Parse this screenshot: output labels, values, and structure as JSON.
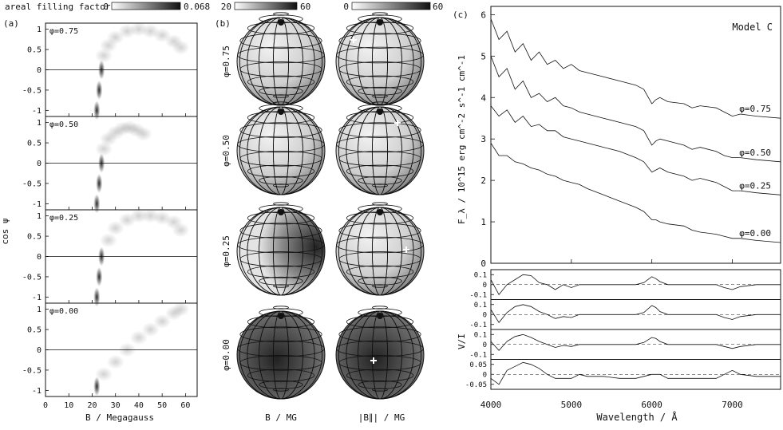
{
  "panels": {
    "a": {
      "label": "(a)",
      "colorbar": {
        "label": "areal filling factor:",
        "min": "0",
        "max": "0.068"
      },
      "ylabel": "cos ψ",
      "xlabel": "B / Megagauss",
      "xlim": [
        0,
        65
      ],
      "ylim": [
        -1.15,
        1.15
      ],
      "xticks": [
        "0",
        "10",
        "20",
        "30",
        "40",
        "50",
        "60"
      ],
      "yticks": [
        "1",
        "0.5",
        "0",
        "-0.5",
        "-1"
      ],
      "phases": [
        "φ=0.75",
        "φ=0.50",
        "φ=0.25",
        "φ=0.00"
      ]
    },
    "b": {
      "label": "(b)",
      "colorbar_left": {
        "min": "20",
        "max": "60"
      },
      "colorbar_right": {
        "min": "0",
        "max": "60"
      },
      "row_labels": [
        "φ=0.75",
        "φ=0.50",
        "φ=0.25",
        "φ=0.00"
      ],
      "col_labels": [
        "B / MG",
        "|B∥| / MG"
      ]
    },
    "c": {
      "label": "(c)",
      "model": "Model C",
      "ylabel": "F_λ / 10^15 erg cm^-2 s^-1 cm^-1",
      "vi_label": "V/I",
      "xlabel": "Wavelength / Å",
      "xticks": [
        "4000",
        "5000",
        "6000",
        "7000"
      ],
      "yticks": [
        "0",
        "1",
        "2",
        "3",
        "4",
        "5",
        "6"
      ],
      "vi_ticks": [
        "0.1",
        "0",
        "-0.1"
      ],
      "vi_ticks_bottom": [
        "0.05",
        "0",
        "-0.05"
      ],
      "curve_labels": [
        "φ=0.75",
        "φ=0.50",
        "φ=0.25",
        "φ=0.00"
      ]
    }
  },
  "colors": {
    "ink": "#111111",
    "paper": "#ffffff"
  },
  "chart_data": [
    {
      "type": "heatmap",
      "title": "",
      "xlabel": "B / Megagauss",
      "ylabel": "cos ψ",
      "xlim": [
        0,
        65
      ],
      "ylim": [
        -1.15,
        1.15
      ],
      "series": [
        {
          "name": "φ=0.75",
          "x": [
            22,
            23,
            24,
            25,
            27,
            30,
            35,
            40,
            45,
            50,
            55,
            58
          ],
          "y": [
            -1.0,
            -0.5,
            0.0,
            0.35,
            0.6,
            0.8,
            0.95,
            1.0,
            0.95,
            0.85,
            0.7,
            0.55
          ]
        },
        {
          "name": "φ=0.50",
          "x": [
            22,
            23,
            24,
            25,
            27,
            30,
            33,
            36,
            39,
            42
          ],
          "y": [
            -1.0,
            -0.5,
            0.0,
            0.35,
            0.6,
            0.75,
            0.85,
            0.88,
            0.82,
            0.72
          ]
        },
        {
          "name": "φ=0.25",
          "x": [
            22,
            23,
            24,
            27,
            30,
            35,
            40,
            45,
            50,
            55,
            58
          ],
          "y": [
            -1.0,
            -0.5,
            0.0,
            0.4,
            0.7,
            0.9,
            1.0,
            1.0,
            0.95,
            0.85,
            0.65
          ]
        },
        {
          "name": "φ=0.00",
          "x": [
            22,
            25,
            30,
            35,
            40,
            45,
            50,
            55,
            58
          ],
          "y": [
            -0.9,
            -0.6,
            -0.3,
            0.0,
            0.3,
            0.5,
            0.7,
            0.9,
            1.0
          ]
        }
      ]
    },
    {
      "type": "line",
      "title": "Model C",
      "xlabel": "Wavelength / Å",
      "ylabel": "F_λ / 10^15 erg cm^-2 s^-1 cm^-1",
      "xlim": [
        4000,
        7600
      ],
      "ylim": [
        0,
        6.2
      ],
      "x": [
        4000,
        4100,
        4200,
        4300,
        4400,
        4500,
        4600,
        4700,
        4800,
        4900,
        5000,
        5100,
        5200,
        5400,
        5600,
        5800,
        5900,
        6000,
        6050,
        6100,
        6200,
        6400,
        6500,
        6600,
        6800,
        6900,
        7000,
        7100,
        7300,
        7600
      ],
      "series": [
        {
          "name": "φ=0.75",
          "values": [
            5.9,
            5.4,
            5.6,
            5.1,
            5.3,
            4.9,
            5.1,
            4.8,
            4.9,
            4.7,
            4.8,
            4.65,
            4.6,
            4.5,
            4.4,
            4.3,
            4.2,
            3.85,
            3.95,
            4.0,
            3.9,
            3.85,
            3.75,
            3.8,
            3.75,
            3.65,
            3.55,
            3.6,
            3.55,
            3.5
          ]
        },
        {
          "name": "φ=0.50",
          "values": [
            5.0,
            4.5,
            4.7,
            4.2,
            4.4,
            4.0,
            4.1,
            3.9,
            4.0,
            3.8,
            3.75,
            3.65,
            3.6,
            3.5,
            3.4,
            3.3,
            3.2,
            2.85,
            2.95,
            3.0,
            2.95,
            2.85,
            2.75,
            2.8,
            2.7,
            2.6,
            2.55,
            2.55,
            2.5,
            2.45
          ]
        },
        {
          "name": "φ=0.25",
          "values": [
            3.8,
            3.55,
            3.7,
            3.4,
            3.55,
            3.3,
            3.35,
            3.2,
            3.2,
            3.05,
            3.0,
            2.95,
            2.9,
            2.8,
            2.7,
            2.55,
            2.45,
            2.2,
            2.25,
            2.3,
            2.2,
            2.1,
            2.0,
            2.05,
            1.95,
            1.85,
            1.75,
            1.75,
            1.7,
            1.65
          ]
        },
        {
          "name": "φ=0.00",
          "values": [
            2.9,
            2.6,
            2.6,
            2.45,
            2.4,
            2.3,
            2.25,
            2.15,
            2.1,
            2.0,
            1.95,
            1.9,
            1.8,
            1.65,
            1.5,
            1.35,
            1.25,
            1.05,
            1.05,
            1.0,
            0.95,
            0.9,
            0.8,
            0.75,
            0.7,
            0.65,
            0.6,
            0.6,
            0.55,
            0.5
          ]
        }
      ]
    },
    {
      "type": "line",
      "title": "",
      "xlabel": "Wavelength / Å",
      "ylabel": "V/I",
      "xlim": [
        4000,
        7600
      ],
      "ylim": [
        -0.15,
        0.15
      ],
      "x": [
        4000,
        4100,
        4200,
        4300,
        4400,
        4500,
        4600,
        4700,
        4800,
        4900,
        5000,
        5100,
        5200,
        5400,
        5600,
        5800,
        5900,
        6000,
        6050,
        6100,
        6200,
        6400,
        6500,
        6600,
        6800,
        6900,
        7000,
        7100,
        7300,
        7600
      ],
      "series": [
        {
          "name": "φ=0.75",
          "values": [
            0.05,
            -0.1,
            0.0,
            0.05,
            0.1,
            0.09,
            0.02,
            0.0,
            -0.05,
            0.0,
            -0.03,
            0.0,
            0.0,
            0.0,
            0.0,
            0.0,
            0.02,
            0.08,
            0.06,
            0.03,
            0.0,
            0.0,
            0.0,
            0.0,
            0.0,
            -0.03,
            -0.05,
            -0.02,
            0.0,
            0.0
          ]
        },
        {
          "name": "φ=0.50",
          "values": [
            0.05,
            -0.08,
            0.02,
            0.08,
            0.1,
            0.08,
            0.03,
            0.0,
            -0.04,
            -0.02,
            -0.03,
            0.0,
            0.0,
            0.0,
            0.0,
            0.0,
            0.02,
            0.09,
            0.07,
            0.03,
            0.0,
            0.0,
            0.0,
            0.0,
            0.0,
            -0.03,
            -0.05,
            -0.02,
            0.0,
            0.0
          ]
        },
        {
          "name": "φ=0.25",
          "values": [
            0.03,
            -0.06,
            0.03,
            0.08,
            0.1,
            0.07,
            0.03,
            0.0,
            -0.03,
            -0.01,
            -0.02,
            0.0,
            0.0,
            0.0,
            0.0,
            0.0,
            0.02,
            0.07,
            0.06,
            0.03,
            0.0,
            0.0,
            0.0,
            0.0,
            0.0,
            -0.02,
            -0.04,
            -0.02,
            0.0,
            0.0
          ]
        },
        {
          "name": "φ=0.00",
          "values": [
            -0.02,
            -0.05,
            0.02,
            0.04,
            0.06,
            0.05,
            0.03,
            0.0,
            -0.02,
            -0.02,
            -0.02,
            0.0,
            -0.01,
            -0.01,
            -0.02,
            -0.02,
            -0.01,
            0.0,
            0.0,
            0.0,
            -0.02,
            -0.02,
            -0.02,
            -0.02,
            -0.02,
            0.0,
            0.02,
            0.0,
            -0.01,
            -0.01
          ]
        }
      ]
    }
  ]
}
